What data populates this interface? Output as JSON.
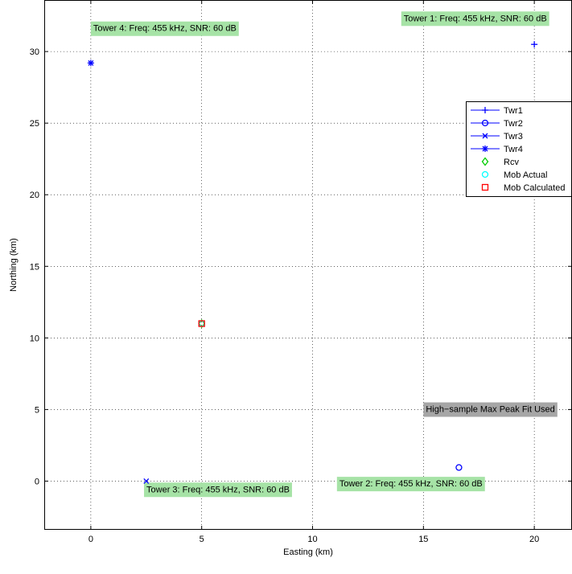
{
  "chart_data": {
    "type": "scatter",
    "xlabel": "Easting (km)",
    "ylabel": "Northing (km)",
    "xlim": [
      -2.1,
      21.7
    ],
    "ylim": [
      -3.4,
      33.6
    ],
    "xticks": [
      0,
      5,
      10,
      15,
      20
    ],
    "yticks": [
      0,
      5,
      10,
      15,
      20,
      25,
      30
    ],
    "grid": true,
    "legend_position": "right",
    "series": [
      {
        "name": "Twr1",
        "marker": "plus",
        "color": "#0000ff",
        "x": [
          20.0
        ],
        "y": [
          30.5
        ]
      },
      {
        "name": "Twr2",
        "marker": "circle",
        "color": "#0000ff",
        "x": [
          16.6
        ],
        "y": [
          0.95
        ]
      },
      {
        "name": "Twr3",
        "marker": "x",
        "color": "#0000ff",
        "x": [
          2.5
        ],
        "y": [
          0.0
        ]
      },
      {
        "name": "Twr4",
        "marker": "asterisk",
        "color": "#0000ff",
        "x": [
          0.0
        ],
        "y": [
          29.2
        ]
      },
      {
        "name": "Rcv",
        "marker": "diamond",
        "color": "#00cc00",
        "x": [
          5.0
        ],
        "y": [
          11.0
        ]
      },
      {
        "name": "Mob Actual",
        "marker": "circle",
        "color": "#00ffff",
        "x": [
          5.0
        ],
        "y": [
          11.0
        ]
      },
      {
        "name": "Mob Calculated",
        "marker": "square",
        "color": "#ff0000",
        "x": [
          5.0
        ],
        "y": [
          11.0
        ]
      }
    ],
    "annotations": [
      {
        "text": "Tower 1: Freq: 455 kHz, SNR: 60 dB",
        "x": 14.0,
        "y": 31.9,
        "color": "#a6e3a6"
      },
      {
        "text": "Tower 2: Freq: 455 kHz, SNR: 60 dB",
        "x": 11.1,
        "y": -0.6,
        "color": "#a6e3a6"
      },
      {
        "text": "Tower 3: Freq: 455 kHz, SNR: 60 dB",
        "x": 2.4,
        "y": -1.0,
        "color": "#a6e3a6"
      },
      {
        "text": "Tower 4: Freq: 455 kHz, SNR: 60 dB",
        "x": 0.0,
        "y": 31.2,
        "color": "#a6e3a6"
      },
      {
        "text": "High−sample Max Peak Fit Used",
        "x": 15.0,
        "y": 4.6,
        "color": "#a6a6a6"
      }
    ]
  }
}
